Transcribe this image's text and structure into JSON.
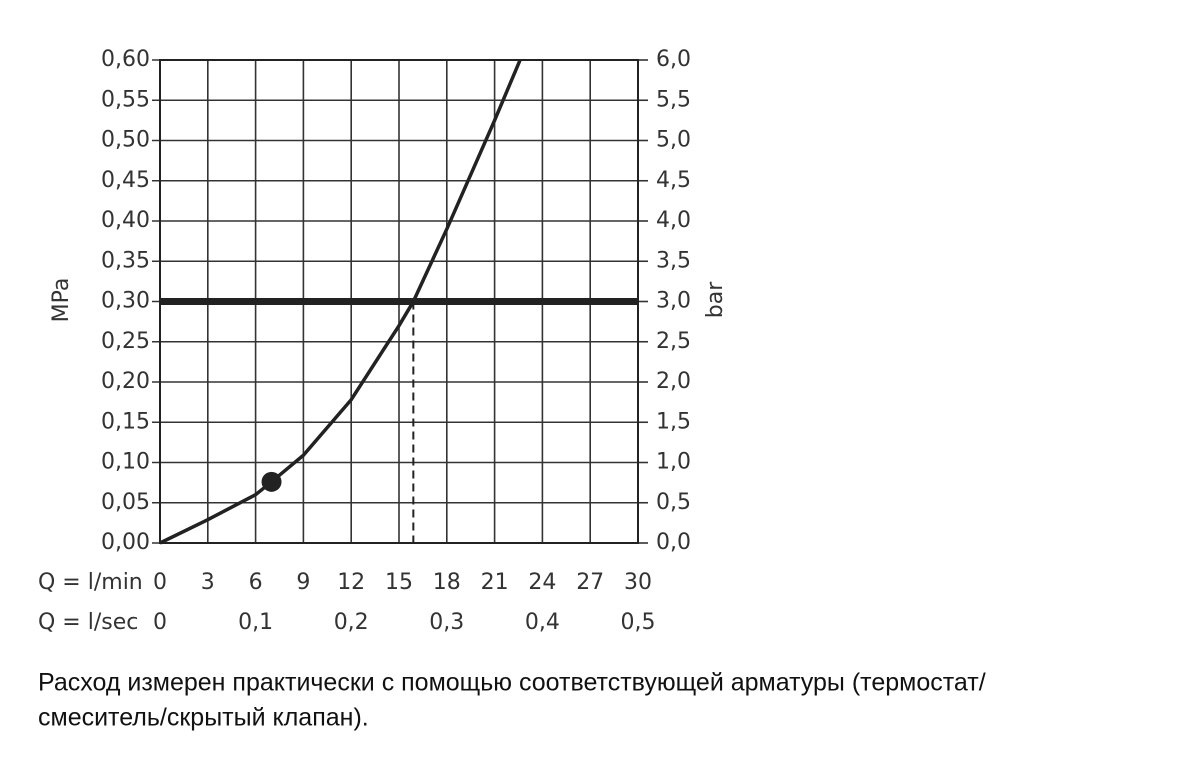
{
  "chart_data": {
    "type": "line",
    "y_label": "MPa",
    "y2_label": "bar",
    "x_label": "Q = l/min",
    "x2_label": "Q = l/sec",
    "x": [
      0,
      3,
      6,
      7,
      9,
      12,
      15,
      15.9,
      18,
      21,
      22.6
    ],
    "values": [
      0,
      0.029,
      0.06,
      0.076,
      0.109,
      0.178,
      0.27,
      0.3,
      0.39,
      0.525,
      0.6
    ],
    "color": "#222222",
    "marker": {
      "x": 7,
      "y": 0.076
    },
    "hline": 0.3,
    "vline": 15.9,
    "xlim": [
      0,
      30
    ],
    "xticks": [
      0,
      3,
      6,
      9,
      12,
      15,
      18,
      21,
      24,
      27,
      30
    ],
    "x2lim": [
      0,
      0.5
    ],
    "x2ticks": [
      0,
      {
        "value": 0.1,
        "label": "0,1"
      },
      {
        "value": 0.2,
        "label": "0,2"
      },
      {
        "value": 0.3,
        "label": "0,3"
      },
      {
        "value": 0.4,
        "label": "0,4"
      },
      {
        "value": 0.5,
        "label": "0,5"
      }
    ],
    "ylim": [
      0,
      0.6
    ],
    "yticks": [
      {
        "value": 0,
        "label": "0,00"
      },
      {
        "value": 0.05,
        "label": "0,05"
      },
      {
        "value": 0.1,
        "label": "0,10"
      },
      {
        "value": 0.15,
        "label": "0,15"
      },
      {
        "value": 0.2,
        "label": "0,20"
      },
      {
        "value": 0.25,
        "label": "0,25"
      },
      {
        "value": 0.3,
        "label": "0,30"
      },
      {
        "value": 0.35,
        "label": "0,35"
      },
      {
        "value": 0.4,
        "label": "0,40"
      },
      {
        "value": 0.45,
        "label": "0,45"
      },
      {
        "value": 0.5,
        "label": "0,50"
      },
      {
        "value": 0.55,
        "label": "0,55"
      },
      {
        "value": 0.6,
        "label": "0,60"
      }
    ],
    "y2lim": [
      0,
      6
    ],
    "y2ticks": [
      {
        "value": 0,
        "label": "0,0"
      },
      {
        "value": 0.5,
        "label": "0,5"
      },
      {
        "value": 1,
        "label": "1,0"
      },
      {
        "value": 1.5,
        "label": "1,5"
      },
      {
        "value": 2,
        "label": "2,0"
      },
      {
        "value": 2.5,
        "label": "2,5"
      },
      {
        "value": 3,
        "label": "3,0"
      },
      {
        "value": 3.5,
        "label": "3,5"
      },
      {
        "value": 4,
        "label": "4,0"
      },
      {
        "value": 4.5,
        "label": "4,5"
      },
      {
        "value": 5,
        "label": "5,0"
      },
      {
        "value": 5.5,
        "label": "5,5"
      },
      {
        "value": 6,
        "label": "6,0"
      }
    ],
    "grid": true,
    "caption": [
      "Расход измерен практически с помощью соответствующей арматуры (термостат/",
      "смеситель/скрытый клапан)."
    ]
  }
}
